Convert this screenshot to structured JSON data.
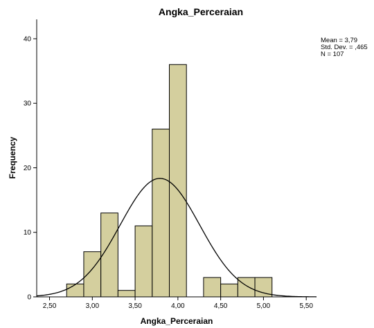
{
  "chart_data": {
    "type": "bar",
    "title": "Angka_Perceraian",
    "xlabel": "Angka_Perceraian",
    "ylabel": "Frequency",
    "bins": [
      {
        "start": 2.7,
        "end": 2.9,
        "count": 2
      },
      {
        "start": 2.9,
        "end": 3.1,
        "count": 7
      },
      {
        "start": 3.1,
        "end": 3.3,
        "count": 13
      },
      {
        "start": 3.3,
        "end": 3.5,
        "count": 1
      },
      {
        "start": 3.5,
        "end": 3.7,
        "count": 11
      },
      {
        "start": 3.7,
        "end": 3.9,
        "count": 26
      },
      {
        "start": 3.9,
        "end": 4.1,
        "count": 36
      },
      {
        "start": 4.3,
        "end": 4.5,
        "count": 3
      },
      {
        "start": 4.5,
        "end": 4.7,
        "count": 2
      },
      {
        "start": 4.7,
        "end": 4.9,
        "count": 3
      },
      {
        "start": 4.9,
        "end": 5.1,
        "count": 3
      }
    ],
    "normal_curve": {
      "mean": 3.79,
      "sd": 0.465,
      "n": 107,
      "bin_width": 0.2
    },
    "x_ticks": [
      2.5,
      3.0,
      3.5,
      4.0,
      4.5,
      5.0,
      5.5
    ],
    "x_tick_labels": [
      "2,50",
      "3,00",
      "3,50",
      "4,00",
      "4,50",
      "5,00",
      "5,50"
    ],
    "y_ticks": [
      0,
      10,
      20,
      30,
      40
    ],
    "y_tick_labels": [
      "0",
      "10",
      "20",
      "30",
      "40"
    ],
    "xlim": [
      2.35,
      5.62
    ],
    "ylim": [
      0,
      43
    ],
    "stats": {
      "mean_text": "Mean = 3,79",
      "sd_text": "Std. Dev. = ,465",
      "n_text": "N = 107"
    },
    "colors": {
      "bar_fill": "#d4cf9e",
      "bar_stroke": "#000000",
      "curve": "#000000",
      "axis": "#000000"
    },
    "grid": false
  }
}
